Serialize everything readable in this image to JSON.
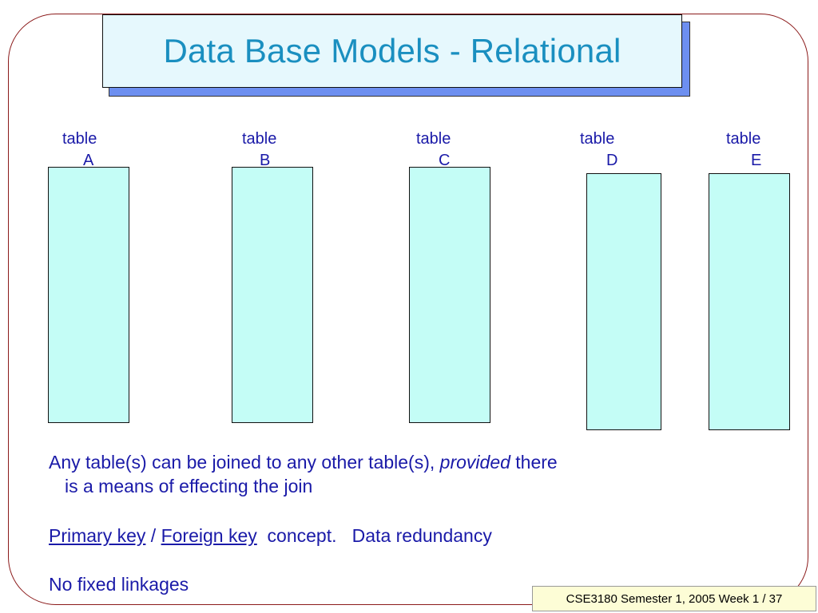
{
  "slide": {
    "title": "Data Base Models - Relational",
    "tables": [
      {
        "word": "table",
        "letter": "A"
      },
      {
        "word": "table",
        "letter": "B"
      },
      {
        "word": "table",
        "letter": "C"
      },
      {
        "word": "table",
        "letter": "D"
      },
      {
        "word": "table",
        "letter": "E"
      }
    ],
    "para1": {
      "before": "Any table(s) can be joined to any other table(s), ",
      "emph": "provided",
      "after": " there",
      "line2": "is a means of effecting the join"
    },
    "para2": {
      "link1": "Primary key",
      "sep": " / ",
      "link2": "Foreign key",
      "rest": "  concept.   Data redundancy"
    },
    "para3": "No fixed linkages",
    "footer": "CSE3180 Semester 1, 2005 Week 1 / 37"
  },
  "colors": {
    "title_text": "#1a8fc0",
    "body_text": "#1a1aa8",
    "table_fill": "#c4fdf6",
    "title_fill": "#e6f8fd",
    "title_shadow": "#6d8ff0",
    "frame": "#8b1a1a",
    "footer_fill": "#fdfdd6"
  }
}
